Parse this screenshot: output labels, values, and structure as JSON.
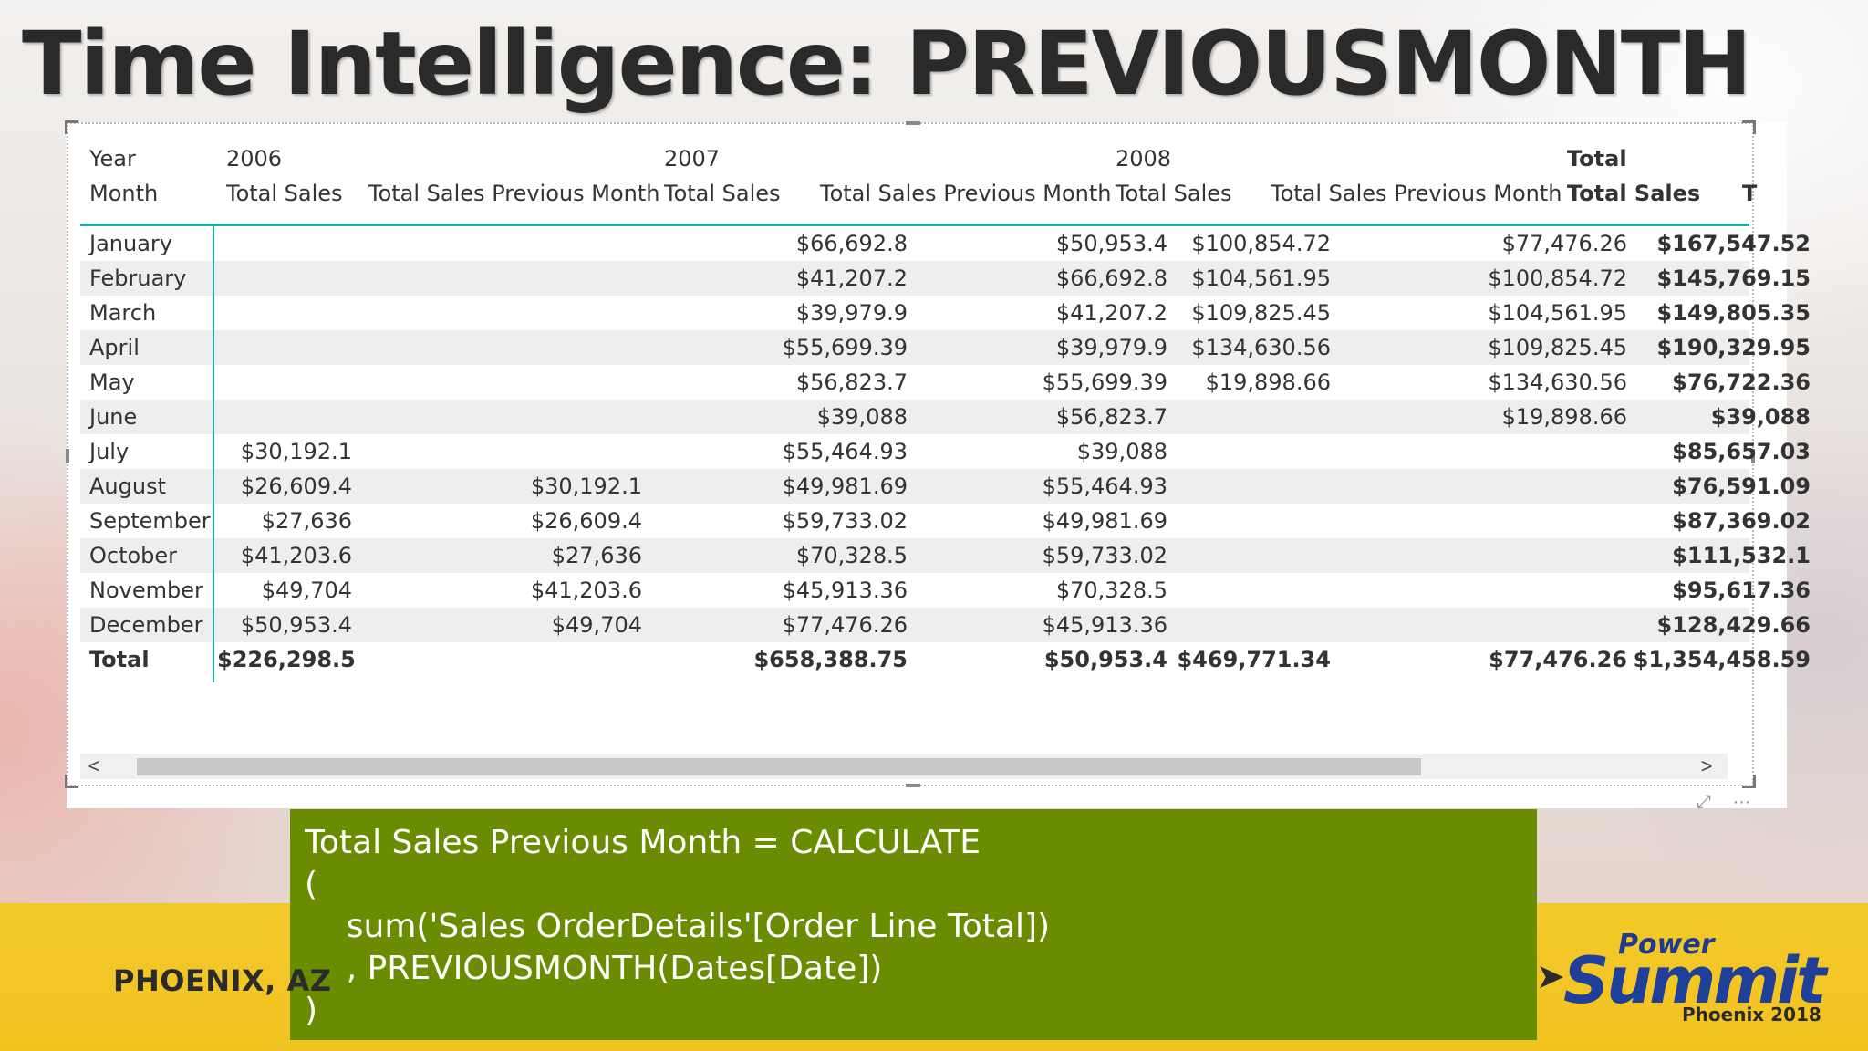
{
  "slide_title": "Time Intelligence: PREVIOUSMONTH",
  "matrix": {
    "header_row1": {
      "year_label": "Year",
      "y2006": "2006",
      "y2007": "2007",
      "y2008": "2008",
      "total": "Total"
    },
    "header_row2": {
      "month_label": "Month",
      "c1": "Total Sales",
      "c2": "Total Sales Previous Month",
      "c3": "Total Sales",
      "c4": "Total Sales Previous Month",
      "c5": "Total Sales",
      "c6": "Total Sales Previous Month",
      "c7": "Total Sales",
      "c8": "T"
    },
    "rows": [
      {
        "month": "January",
        "s2006": "",
        "p2006": "",
        "s2007": "$66,692.8",
        "p2007": "$50,953.4",
        "s2008": "$100,854.72",
        "p2008": "$77,476.26",
        "total": "$167,547.52"
      },
      {
        "month": "February",
        "s2006": "",
        "p2006": "",
        "s2007": "$41,207.2",
        "p2007": "$66,692.8",
        "s2008": "$104,561.95",
        "p2008": "$100,854.72",
        "total": "$145,769.15"
      },
      {
        "month": "March",
        "s2006": "",
        "p2006": "",
        "s2007": "$39,979.9",
        "p2007": "$41,207.2",
        "s2008": "$109,825.45",
        "p2008": "$104,561.95",
        "total": "$149,805.35"
      },
      {
        "month": "April",
        "s2006": "",
        "p2006": "",
        "s2007": "$55,699.39",
        "p2007": "$39,979.9",
        "s2008": "$134,630.56",
        "p2008": "$109,825.45",
        "total": "$190,329.95"
      },
      {
        "month": "May",
        "s2006": "",
        "p2006": "",
        "s2007": "$56,823.7",
        "p2007": "$55,699.39",
        "s2008": "$19,898.66",
        "p2008": "$134,630.56",
        "total": "$76,722.36"
      },
      {
        "month": "June",
        "s2006": "",
        "p2006": "",
        "s2007": "$39,088",
        "p2007": "$56,823.7",
        "s2008": "",
        "p2008": "$19,898.66",
        "total": "$39,088"
      },
      {
        "month": "July",
        "s2006": "$30,192.1",
        "p2006": "",
        "s2007": "$55,464.93",
        "p2007": "$39,088",
        "s2008": "",
        "p2008": "",
        "total": "$85,657.03"
      },
      {
        "month": "August",
        "s2006": "$26,609.4",
        "p2006": "$30,192.1",
        "s2007": "$49,981.69",
        "p2007": "$55,464.93",
        "s2008": "",
        "p2008": "",
        "total": "$76,591.09"
      },
      {
        "month": "September",
        "s2006": "$27,636",
        "p2006": "$26,609.4",
        "s2007": "$59,733.02",
        "p2007": "$49,981.69",
        "s2008": "",
        "p2008": "",
        "total": "$87,369.02"
      },
      {
        "month": "October",
        "s2006": "$41,203.6",
        "p2006": "$27,636",
        "s2007": "$70,328.5",
        "p2007": "$59,733.02",
        "s2008": "",
        "p2008": "",
        "total": "$111,532.1"
      },
      {
        "month": "November",
        "s2006": "$49,704",
        "p2006": "$41,203.6",
        "s2007": "$45,913.36",
        "p2007": "$70,328.5",
        "s2008": "",
        "p2008": "",
        "total": "$95,617.36"
      },
      {
        "month": "December",
        "s2006": "$50,953.4",
        "p2006": "$49,704",
        "s2007": "$77,476.26",
        "p2007": "$45,913.36",
        "s2008": "",
        "p2008": "",
        "total": "$128,429.66"
      },
      {
        "month": "Total",
        "s2006": "$226,298.5",
        "p2006": "",
        "s2007": "$658,388.75",
        "p2007": "$50,953.4",
        "s2008": "$469,771.34",
        "p2008": "$77,476.26",
        "total": "$1,354,458.59"
      }
    ]
  },
  "scrollbar": {
    "left_arrow": "<",
    "right_arrow": ">"
  },
  "visual_icons": {
    "focus_mode": "focus-mode-icon",
    "more_options": "ellipsis-icon",
    "focus_glyph": "⤢",
    "more_glyph": "···"
  },
  "code_lines": [
    "Total Sales Previous Month = CALCULATE",
    "(",
    "    sum('Sales OrderDetails'[Order Line Total])",
    "    , PREVIOUSMONTH(Dates[Date])",
    ")"
  ],
  "footer": {
    "location": "PHOENIX, AZ",
    "logo": {
      "power": "Power",
      "summit": "Summit",
      "city": "Phoenix 2018"
    }
  },
  "colors": {
    "accent_rule": "#19b3a5",
    "code_bg": "#6a8c00",
    "footer_band": "#f3c92a",
    "logo_blue": "#1f3f98"
  }
}
